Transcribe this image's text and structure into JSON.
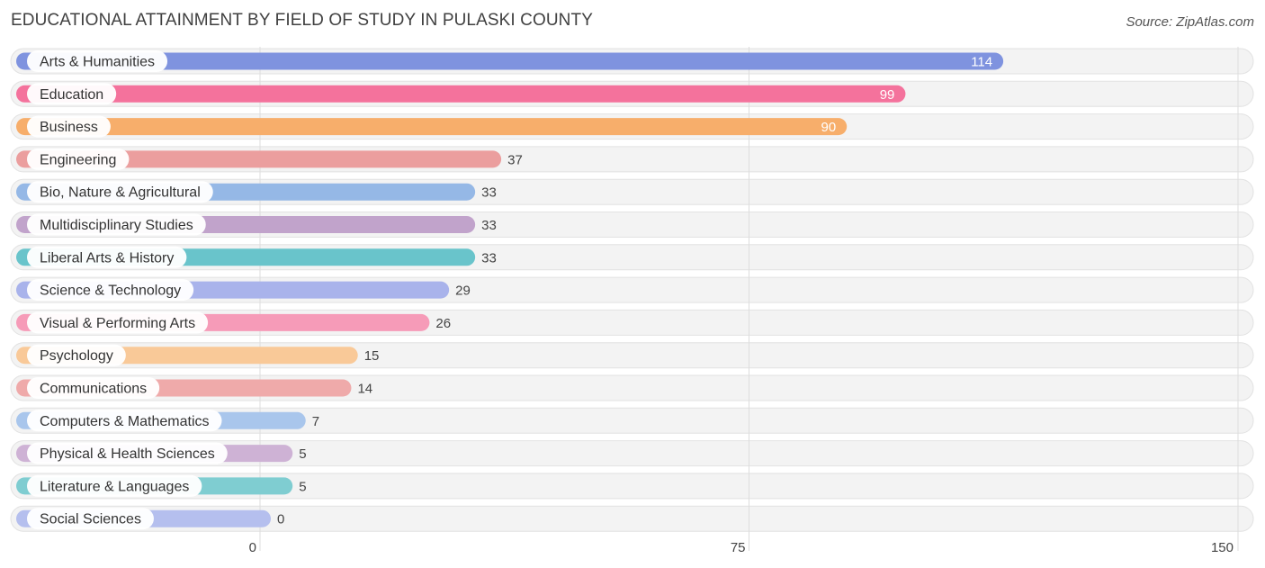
{
  "header": {
    "title": "EDUCATIONAL ATTAINMENT BY FIELD OF STUDY IN PULASKI COUNTY",
    "source": "Source: ZipAtlas.com"
  },
  "chart_data": {
    "type": "bar",
    "orientation": "horizontal",
    "title": "EDUCATIONAL ATTAINMENT BY FIELD OF STUDY IN PULASKI COUNTY",
    "xlabel": "",
    "ylabel": "",
    "xlim": [
      0,
      150
    ],
    "ticks": [
      0,
      75,
      150
    ],
    "grid": true,
    "categories": [
      "Arts & Humanities",
      "Education",
      "Business",
      "Engineering",
      "Bio, Nature & Agricultural",
      "Multidisciplinary Studies",
      "Liberal Arts & History",
      "Science & Technology",
      "Visual & Performing Arts",
      "Psychology",
      "Communications",
      "Computers & Mathematics",
      "Physical & Health Sciences",
      "Literature & Languages",
      "Social Sciences"
    ],
    "values": [
      114,
      99,
      90,
      37,
      33,
      33,
      33,
      29,
      26,
      15,
      14,
      7,
      5,
      5,
      0
    ],
    "colors": [
      "#7f93df",
      "#f4729c",
      "#f7ae6b",
      "#eb9e9e",
      "#95b8e6",
      "#c1a3cb",
      "#69c4cb",
      "#a9b3eb",
      "#f69bb8",
      "#f9c998",
      "#efaaaa",
      "#a9c6ec",
      "#ceb2d5",
      "#7fcdd1",
      "#b5bfee"
    ]
  }
}
